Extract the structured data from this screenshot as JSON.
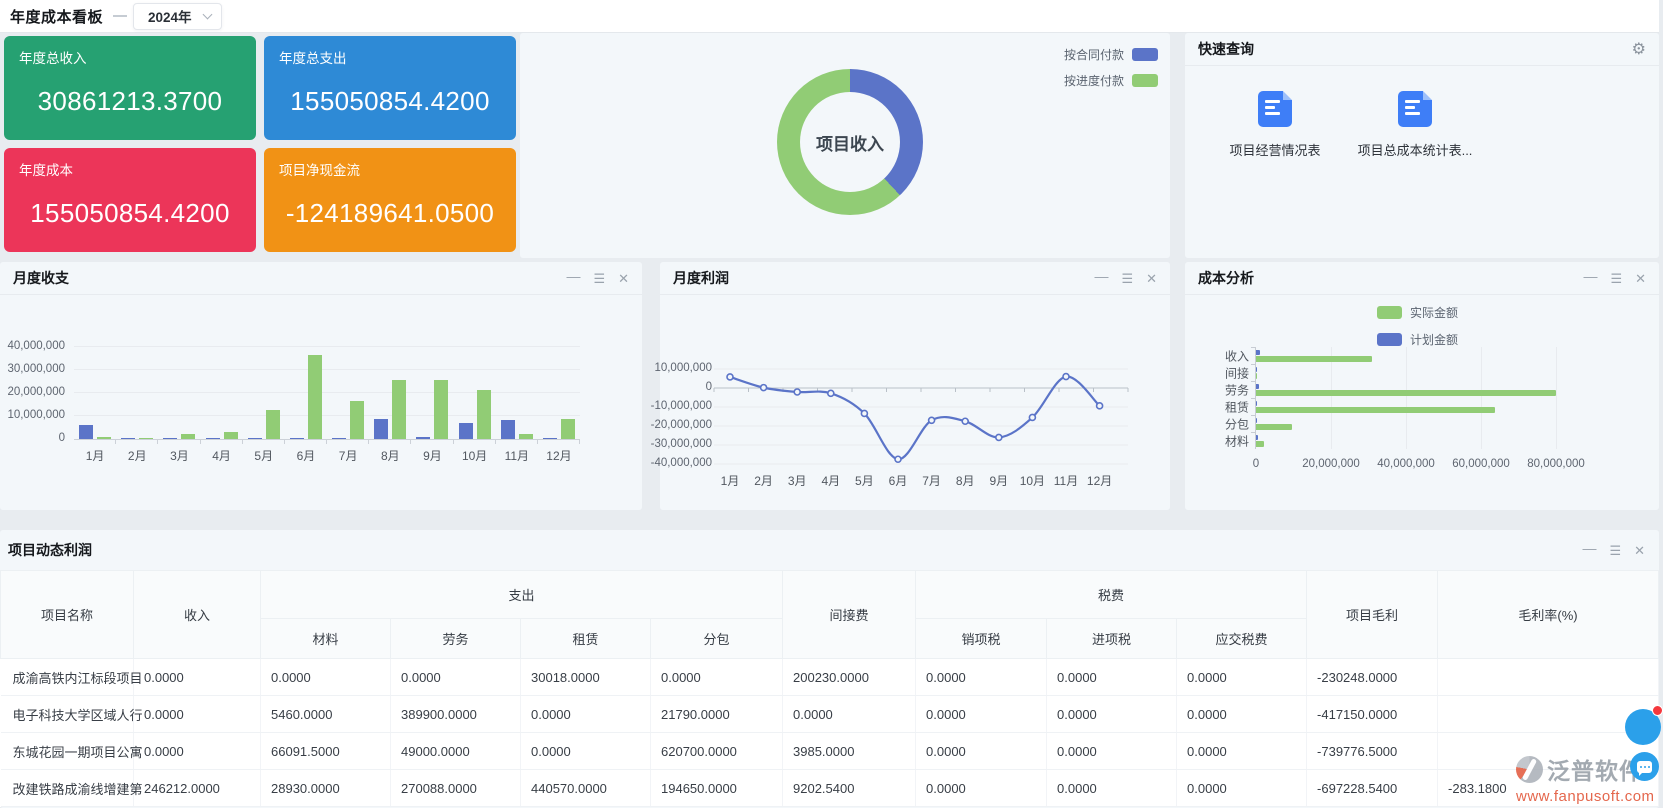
{
  "topbar": {
    "title": "年度成本看板",
    "year": "2024年"
  },
  "kpi_cards": [
    {
      "label": "年度总收入",
      "value": "30861213.3700",
      "color": "#26a172"
    },
    {
      "label": "年度总支出",
      "value": "155050854.4200",
      "color": "#2e8ad6"
    },
    {
      "label": "年度成本",
      "value": "155050854.4200",
      "color": "#ec3559"
    },
    {
      "label": "项目净现金流",
      "value": "-124189641.0500",
      "color": "#f19215"
    }
  ],
  "quick_query": {
    "title": "快速查询",
    "items": [
      "项目经营情况表",
      "项目总成本统计表..."
    ]
  },
  "window_controls": {
    "minimize": "—",
    "menu": "☰",
    "close": "✕"
  },
  "icons": {
    "gear": "⚙"
  },
  "watermark": {
    "brand": "泛普软件",
    "url": "www.fanpusoft.com"
  },
  "chart_data": [
    {
      "id": "income_pie",
      "type": "pie",
      "donut": true,
      "title": "项目收入",
      "legend_position": "top-right",
      "unit": "share % estimated from arc angles",
      "slices": [
        {
          "label": "按合同付款",
          "value": 38,
          "color": "#5b74c8"
        },
        {
          "label": "按进度付款",
          "value": 62,
          "color": "#91cc75"
        }
      ]
    },
    {
      "id": "monthly_balance",
      "type": "bar",
      "title": "月度收支",
      "grid": true,
      "categories": [
        "1月",
        "2月",
        "3月",
        "4月",
        "5月",
        "6月",
        "7月",
        "8月",
        "9月",
        "10月",
        "11月",
        "12月"
      ],
      "series": [
        {
          "color": "#5b74c8",
          "values": [
            6100000,
            500000,
            100000,
            500000,
            250000,
            650000,
            400000,
            8500000,
            900000,
            6800000,
            8100000,
            400000
          ]
        },
        {
          "color": "#91cc75",
          "values": [
            1000000,
            450000,
            2300000,
            3000000,
            12800000,
            36500000,
            16500000,
            25700000,
            25500000,
            21500000,
            2200000,
            8900000
          ]
        }
      ],
      "ylim": [
        0,
        40000000
      ],
      "yticks": [
        0,
        10000000,
        20000000,
        30000000,
        40000000
      ],
      "values_estimated_from_pixels": true
    },
    {
      "id": "monthly_profit",
      "type": "line",
      "title": "月度利润",
      "grid": true,
      "color": "#5b74c8",
      "smooth": true,
      "categories": [
        "1月",
        "2月",
        "3月",
        "4月",
        "5月",
        "6月",
        "7月",
        "8月",
        "9月",
        "10月",
        "11月",
        "12月"
      ],
      "values": [
        5800000,
        200000,
        -2100000,
        -2800000,
        -13400000,
        -37500000,
        -17000000,
        -17500000,
        -26000000,
        -15500000,
        6000000,
        -9400000
      ],
      "ylim": [
        -40000000,
        10000000
      ],
      "yticks": [
        10000000,
        0,
        -10000000,
        -20000000,
        -30000000,
        -40000000
      ],
      "ytick_labels_clipped_on_left": true,
      "values_estimated_from_pixels": true
    },
    {
      "id": "cost_analysis",
      "type": "bar",
      "orientation": "horizontal",
      "title": "成本分析",
      "grid": true,
      "legend": [
        {
          "label": "实际金额",
          "color": "#91cc75"
        },
        {
          "label": "计划金额",
          "color": "#5b74c8"
        }
      ],
      "categories": [
        "收入",
        "间接",
        "劳务",
        "租赁",
        "分包",
        "材料"
      ],
      "series": [
        {
          "name": "计划金额",
          "color": "#5b74c8",
          "values": [
            1000000,
            150000,
            900000,
            250000,
            120000,
            450000
          ]
        },
        {
          "name": "实际金额",
          "color": "#91cc75",
          "values": [
            30860000,
            300000,
            80000000,
            63800000,
            9500000,
            2000000
          ]
        }
      ],
      "xlim": [
        0,
        80000000
      ],
      "xticks": [
        0,
        20000000,
        40000000,
        60000000,
        80000000
      ],
      "values_estimated_from_pixels": true
    }
  ],
  "table": {
    "title": "项目动态利润",
    "col_groups": [
      {
        "label": "项目名称"
      },
      {
        "label": "收入"
      },
      {
        "label": "支出",
        "children": [
          "材料",
          "劳务",
          "租赁",
          "分包"
        ]
      },
      {
        "label": "间接费"
      },
      {
        "label": "税费",
        "children": [
          "销项税",
          "进项税",
          "应交税费"
        ]
      },
      {
        "label": "项目毛利"
      },
      {
        "label": "毛利率(%)"
      }
    ],
    "rows": [
      [
        "成渝高铁内江标段项目",
        "0.0000",
        "0.0000",
        "0.0000",
        "30018.0000",
        "0.0000",
        "200230.0000",
        "0.0000",
        "0.0000",
        "0.0000",
        "-230248.0000",
        ""
      ],
      [
        "电子科技大学区域人行",
        "0.0000",
        "5460.0000",
        "389900.0000",
        "0.0000",
        "21790.0000",
        "0.0000",
        "0.0000",
        "0.0000",
        "0.0000",
        "-417150.0000",
        ""
      ],
      [
        "东城花园一期项目公寓",
        "0.0000",
        "66091.5000",
        "49000.0000",
        "0.0000",
        "620700.0000",
        "3985.0000",
        "0.0000",
        "0.0000",
        "0.0000",
        "-739776.5000",
        ""
      ],
      [
        "改建铁路成渝线增建第",
        "246212.0000",
        "28930.0000",
        "270088.0000",
        "440570.0000",
        "194650.0000",
        "9202.5400",
        "0.0000",
        "0.0000",
        "0.0000",
        "-697228.5400",
        "-283.1800"
      ]
    ]
  }
}
